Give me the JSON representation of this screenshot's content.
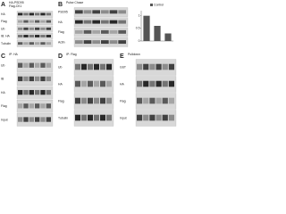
{
  "panels": [
    {
      "letter": "A",
      "header": [
        "HA-PSD95",
        "Flag-CK1"
      ],
      "rows": [
        "HA",
        "Flag",
        "Ub",
        "IB: HA",
        "Tubulin"
      ]
    },
    {
      "letter": "B",
      "header": [
        "Pulse Chase"
      ],
      "rows": [
        "PSD95",
        "HA",
        "Flag",
        "Actin"
      ],
      "chart": {
        "legend": "Control",
        "ylim": [
          0,
          1.2
        ],
        "yticks": [
          0,
          0.5,
          1
        ],
        "values": [
          1,
          0.6,
          0.3
        ],
        "color": "#555555"
      }
    },
    {
      "letter": "C",
      "header": [
        "IP: HA"
      ],
      "rows": [
        "Ub",
        "IB",
        "HA",
        "Flag",
        "Input"
      ]
    },
    {
      "letter": "D",
      "header": [
        "IP: Flag"
      ],
      "rows": [
        "Ub",
        "HA",
        "Flag",
        "Tubulin"
      ]
    },
    {
      "letter": "E",
      "header": [
        "Pulldown"
      ],
      "rows": [
        "GST",
        "HA",
        "Flag",
        "Input"
      ]
    }
  ]
}
